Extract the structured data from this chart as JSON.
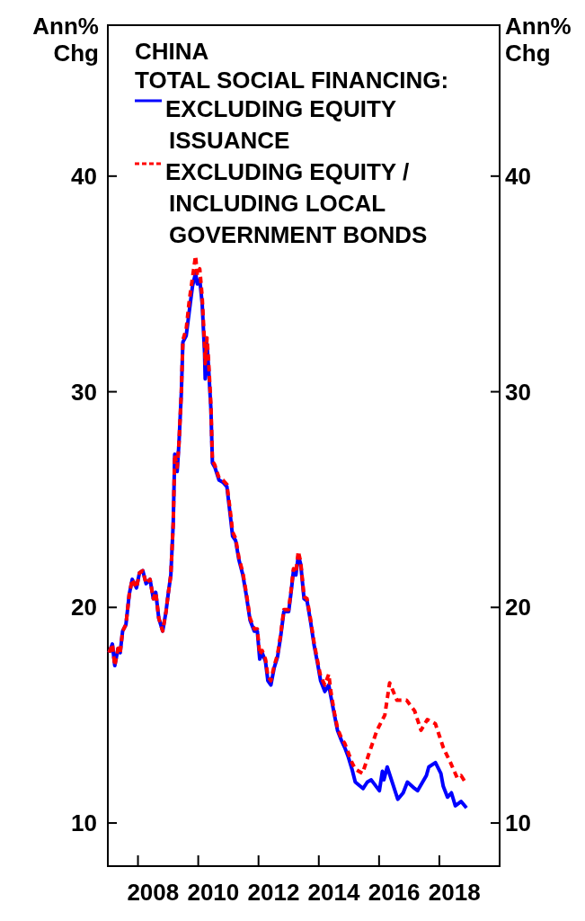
{
  "chart_data": {
    "type": "line",
    "title": "CHINA",
    "subtitle": "TOTAL SOCIAL FINANCING:",
    "ylabel": "Ann% Chg",
    "y2label": "Ann% Chg",
    "xlim": [
      2007,
      2020
    ],
    "xticks": [
      {
        "value": 2008,
        "label": null
      },
      {
        "value": 2010,
        "label": null
      },
      {
        "value": 2012,
        "label": null
      },
      {
        "value": 2014,
        "label": null
      },
      {
        "value": 2016,
        "label": null
      },
      {
        "value": 2018,
        "label": null
      },
      {
        "value": 2008.5,
        "label": "2008"
      },
      {
        "value": 2010.5,
        "label": "2010"
      },
      {
        "value": 2012.5,
        "label": "2012"
      },
      {
        "value": 2014.5,
        "label": "2014"
      },
      {
        "value": 2016.5,
        "label": "2016"
      },
      {
        "value": 2018.5,
        "label": "2018"
      }
    ],
    "ylim": [
      8,
      47
    ],
    "yticks": [
      10,
      20,
      30,
      40
    ],
    "y2lim": [
      8,
      47
    ],
    "y2ticks": [
      10,
      20,
      30,
      40
    ],
    "legend": "top left",
    "grid": false,
    "series": [
      {
        "name": "EXCLUDING EQUITY ISSUANCE",
        "color": "#0000ff",
        "line_style": "solid",
        "x": [
          2007.04,
          2007.15,
          2007.23,
          2007.34,
          2007.41,
          2007.49,
          2007.6,
          2007.71,
          2007.81,
          2007.95,
          2008.05,
          2008.16,
          2008.27,
          2008.4,
          2008.51,
          2008.59,
          2008.69,
          2008.82,
          2008.93,
          2009.01,
          2009.09,
          2009.17,
          2009.22,
          2009.3,
          2009.36,
          2009.44,
          2009.49,
          2009.6,
          2009.7,
          2009.81,
          2009.91,
          2009.97,
          2010.05,
          2010.13,
          2010.21,
          2010.23,
          2010.29,
          2010.34,
          2010.42,
          2010.47,
          2010.55,
          2010.69,
          2010.82,
          2010.95,
          2011.06,
          2011.14,
          2011.24,
          2011.35,
          2011.48,
          2011.59,
          2011.72,
          2011.86,
          2011.96,
          2012.04,
          2012.12,
          2012.23,
          2012.31,
          2012.41,
          2012.52,
          2012.63,
          2012.73,
          2012.84,
          2013.0,
          2013.08,
          2013.16,
          2013.24,
          2013.32,
          2013.4,
          2013.51,
          2013.61,
          2013.72,
          2013.85,
          2013.96,
          2014.06,
          2014.2,
          2014.33,
          2014.41,
          2014.52,
          2014.62,
          2014.76,
          2014.86,
          2014.97,
          2015.1,
          2015.21,
          2015.47,
          2015.61,
          2015.74,
          2016.01,
          2016.11,
          2016.16,
          2016.27,
          2016.62,
          2016.8,
          2016.94,
          2017.18,
          2017.28,
          2017.57,
          2017.65,
          2017.87,
          2018.05,
          2018.13,
          2018.27,
          2018.4,
          2018.53,
          2018.72,
          2018.9
        ],
        "values": [
          17.9,
          18.3,
          17.3,
          18.1,
          17.9,
          18.9,
          19.2,
          20.6,
          21.3,
          20.9,
          21.6,
          21.7,
          21.1,
          21.3,
          20.4,
          20.7,
          19.5,
          18.9,
          19.8,
          20.7,
          21.5,
          23.9,
          27.1,
          26.3,
          27.6,
          30.0,
          32.3,
          32.6,
          33.7,
          34.9,
          35.5,
          35.0,
          35.2,
          34.1,
          31.8,
          30.6,
          32.2,
          31.2,
          29.2,
          26.7,
          26.5,
          25.9,
          25.8,
          25.6,
          24.3,
          23.3,
          23.1,
          22.2,
          21.5,
          20.6,
          19.4,
          18.9,
          18.9,
          17.6,
          17.9,
          17.5,
          16.6,
          16.4,
          17.2,
          17.7,
          18.6,
          19.8,
          19.8,
          20.7,
          21.7,
          21.5,
          22.4,
          22.0,
          20.4,
          20.3,
          19.4,
          18.2,
          17.4,
          16.6,
          16.1,
          16.4,
          15.8,
          15.0,
          14.3,
          13.8,
          13.5,
          13.1,
          12.5,
          11.9,
          11.6,
          11.9,
          12.0,
          11.5,
          12.4,
          12.0,
          12.6,
          11.1,
          11.4,
          11.9,
          11.6,
          11.5,
          12.2,
          12.6,
          12.8,
          12.3,
          11.7,
          11.2,
          11.4,
          10.8,
          11.0,
          10.7
        ]
      },
      {
        "name": "EXCLUDING EQUITY / INCLUDING LOCAL GOVERNMENT BONDS",
        "color": "#ff0000",
        "line_style": "dashed",
        "x": [
          2007.04,
          2007.15,
          2007.23,
          2007.34,
          2007.41,
          2007.49,
          2007.6,
          2007.71,
          2007.81,
          2007.95,
          2008.05,
          2008.16,
          2008.27,
          2008.4,
          2008.51,
          2008.59,
          2008.69,
          2008.82,
          2008.93,
          2009.01,
          2009.09,
          2009.17,
          2009.22,
          2009.3,
          2009.36,
          2009.44,
          2009.49,
          2009.6,
          2009.7,
          2009.81,
          2009.91,
          2009.97,
          2010.05,
          2010.13,
          2010.21,
          2010.23,
          2010.29,
          2010.34,
          2010.42,
          2010.47,
          2010.55,
          2010.69,
          2010.82,
          2010.95,
          2011.06,
          2011.14,
          2011.24,
          2011.35,
          2011.48,
          2011.59,
          2011.72,
          2011.86,
          2011.96,
          2012.04,
          2012.12,
          2012.23,
          2012.31,
          2012.41,
          2012.52,
          2012.63,
          2012.73,
          2012.84,
          2013.0,
          2013.08,
          2013.16,
          2013.24,
          2013.32,
          2013.4,
          2013.51,
          2013.61,
          2013.72,
          2013.85,
          2013.96,
          2014.06,
          2014.2,
          2014.33,
          2014.41,
          2014.52,
          2014.62,
          2014.76,
          2014.86,
          2014.97,
          2015.1,
          2015.21,
          2015.45,
          2015.66,
          2015.93,
          2016.19,
          2016.35,
          2016.59,
          2016.91,
          2017.18,
          2017.39,
          2017.6,
          2017.87,
          2018.13,
          2018.37,
          2018.59,
          2018.72,
          2018.9
        ],
        "values": [
          17.9,
          18.3,
          17.3,
          18.1,
          17.9,
          18.9,
          19.2,
          20.6,
          21.3,
          20.9,
          21.6,
          21.7,
          21.1,
          21.3,
          20.4,
          20.7,
          19.5,
          18.9,
          19.8,
          20.7,
          21.5,
          23.9,
          27.1,
          26.5,
          27.6,
          30.0,
          32.4,
          32.9,
          34.2,
          35.3,
          36.3,
          35.4,
          35.7,
          34.4,
          32.2,
          31.3,
          32.5,
          31.5,
          29.4,
          26.8,
          26.6,
          26.0,
          25.9,
          25.7,
          24.5,
          23.5,
          23.2,
          22.3,
          21.6,
          20.7,
          19.5,
          19.0,
          19.0,
          17.8,
          18.0,
          17.6,
          16.8,
          16.6,
          17.3,
          17.8,
          18.7,
          19.9,
          19.9,
          20.8,
          21.8,
          21.6,
          22.6,
          22.1,
          20.5,
          20.4,
          19.5,
          18.3,
          17.5,
          16.8,
          16.4,
          16.9,
          16.0,
          15.1,
          14.4,
          13.9,
          13.7,
          13.3,
          12.8,
          12.5,
          12.3,
          13.2,
          14.3,
          15.0,
          16.5,
          15.7,
          15.7,
          15.2,
          14.3,
          14.8,
          14.6,
          13.5,
          12.8,
          12.1,
          12.2,
          11.8
        ]
      }
    ]
  }
}
